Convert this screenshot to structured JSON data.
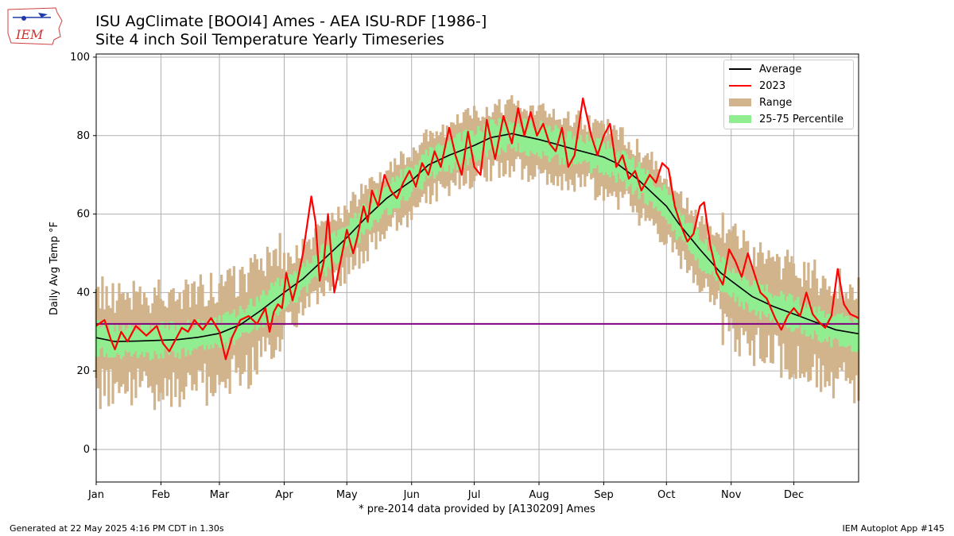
{
  "header": {
    "title_line1": "ISU AgClimate [BOOI4] Ames - AEA ISU-RDF [1986-]",
    "title_line2": "Site 4 inch Soil Temperature Yearly Timeseries",
    "logo_text": "IEM"
  },
  "footer": {
    "generated": "Generated at 22 May 2025 4:16 PM CDT in 1.30s",
    "app": "IEM Autoplot App #145",
    "note": "* pre-2014 data provided by [A130209] Ames"
  },
  "colors": {
    "average": "#000000",
    "year": "#ff0000",
    "range": "#d2b48c",
    "percentile": "#90ee90",
    "freezing_line": "#800080",
    "grid": "#b0b0b0"
  },
  "chart_data": {
    "type": "area",
    "xlabel": "",
    "ylabel": "Daily Avg Temp °F",
    "ylim": [
      -8.3,
      100.8
    ],
    "yticks": [
      0,
      20,
      40,
      60,
      80,
      100
    ],
    "xlim_days": [
      1,
      366
    ],
    "months": [
      "Jan",
      "Feb",
      "Mar",
      "Apr",
      "May",
      "Jun",
      "Jul",
      "Aug",
      "Sep",
      "Oct",
      "Nov",
      "Dec"
    ],
    "month_start_days": [
      1,
      32,
      60,
      91,
      121,
      152,
      182,
      213,
      244,
      274,
      305,
      335
    ],
    "grid": true,
    "legend_placement": "top-right",
    "reference_line": {
      "y": 32,
      "color": "#800080"
    },
    "legend": [
      "Average",
      "2023",
      "Range",
      "25-75 Percentile"
    ],
    "average_anchors": [
      [
        1,
        28.5
      ],
      [
        10,
        27.5
      ],
      [
        20,
        27.6
      ],
      [
        30,
        27.8
      ],
      [
        40,
        28.0
      ],
      [
        50,
        28.6
      ],
      [
        60,
        29.6
      ],
      [
        70,
        31.8
      ],
      [
        80,
        35.5
      ],
      [
        91,
        40.0
      ],
      [
        100,
        43.5
      ],
      [
        110,
        48.5
      ],
      [
        121,
        54.0
      ],
      [
        130,
        59.0
      ],
      [
        140,
        64.0
      ],
      [
        152,
        68.5
      ],
      [
        160,
        72.5
      ],
      [
        170,
        75.0
      ],
      [
        182,
        77.5
      ],
      [
        190,
        79.5
      ],
      [
        200,
        80.5
      ],
      [
        213,
        79.0
      ],
      [
        220,
        78.0
      ],
      [
        230,
        76.5
      ],
      [
        244,
        74.5
      ],
      [
        250,
        73.0
      ],
      [
        260,
        69.0
      ],
      [
        274,
        62.0
      ],
      [
        280,
        57.5
      ],
      [
        290,
        51.0
      ],
      [
        300,
        45.0
      ],
      [
        305,
        43.0
      ],
      [
        315,
        39.0
      ],
      [
        325,
        36.5
      ],
      [
        335,
        34.5
      ],
      [
        345,
        32.5
      ],
      [
        355,
        30.5
      ],
      [
        366,
        29.5
      ]
    ],
    "year_label": "2023",
    "year_anchors": [
      [
        1,
        31.5
      ],
      [
        5,
        33.0
      ],
      [
        8,
        28.0
      ],
      [
        10,
        25.5
      ],
      [
        13,
        30.0
      ],
      [
        16,
        27.5
      ],
      [
        20,
        31.5
      ],
      [
        25,
        29.0
      ],
      [
        30,
        31.5
      ],
      [
        33,
        27.0
      ],
      [
        36,
        25.0
      ],
      [
        38,
        27.0
      ],
      [
        42,
        31.0
      ],
      [
        45,
        30.0
      ],
      [
        48,
        33.0
      ],
      [
        52,
        30.5
      ],
      [
        56,
        33.5
      ],
      [
        60,
        30.0
      ],
      [
        63,
        23.0
      ],
      [
        66,
        28.5
      ],
      [
        70,
        33.0
      ],
      [
        74,
        34.0
      ],
      [
        78,
        32.0
      ],
      [
        82,
        36.0
      ],
      [
        84,
        30.0
      ],
      [
        86,
        35.0
      ],
      [
        88,
        37.0
      ],
      [
        90,
        36.0
      ],
      [
        92,
        45.0
      ],
      [
        95,
        38.0
      ],
      [
        97,
        42.0
      ],
      [
        100,
        50.0
      ],
      [
        104,
        64.5
      ],
      [
        106,
        58.0
      ],
      [
        108,
        43.0
      ],
      [
        110,
        48.0
      ],
      [
        112,
        60.0
      ],
      [
        115,
        40.0
      ],
      [
        118,
        48.0
      ],
      [
        121,
        56.0
      ],
      [
        124,
        50.0
      ],
      [
        126,
        54.0
      ],
      [
        129,
        62.0
      ],
      [
        131,
        58.0
      ],
      [
        133,
        66.0
      ],
      [
        136,
        62.0
      ],
      [
        139,
        70.0
      ],
      [
        142,
        66.0
      ],
      [
        145,
        64.0
      ],
      [
        148,
        68.0
      ],
      [
        151,
        71.0
      ],
      [
        154,
        67.0
      ],
      [
        157,
        73.0
      ],
      [
        160,
        70.0
      ],
      [
        163,
        76.0
      ],
      [
        166,
        72.0
      ],
      [
        170,
        82.0
      ],
      [
        173,
        75.0
      ],
      [
        176,
        70.0
      ],
      [
        179,
        81.0
      ],
      [
        182,
        72.0
      ],
      [
        185,
        70.0
      ],
      [
        188,
        84.0
      ],
      [
        192,
        74.0
      ],
      [
        196,
        85.0
      ],
      [
        200,
        78.0
      ],
      [
        203,
        87.0
      ],
      [
        206,
        80.0
      ],
      [
        209,
        86.0
      ],
      [
        212,
        80.0
      ],
      [
        215,
        83.0
      ],
      [
        218,
        78.0
      ],
      [
        221,
        76.0
      ],
      [
        224,
        82.0
      ],
      [
        227,
        72.0
      ],
      [
        230,
        75.0
      ],
      [
        234,
        89.5
      ],
      [
        238,
        80.0
      ],
      [
        241,
        75.0
      ],
      [
        244,
        80.0
      ],
      [
        247,
        83.0
      ],
      [
        250,
        72.0
      ],
      [
        253,
        75.0
      ],
      [
        256,
        69.0
      ],
      [
        259,
        71.0
      ],
      [
        262,
        66.0
      ],
      [
        266,
        70.0
      ],
      [
        269,
        68.0
      ],
      [
        272,
        73.0
      ],
      [
        275,
        71.5
      ],
      [
        278,
        62.0
      ],
      [
        281,
        57.0
      ],
      [
        284,
        53.0
      ],
      [
        287,
        55.0
      ],
      [
        290,
        62.0
      ],
      [
        292,
        63.0
      ],
      [
        295,
        52.0
      ],
      [
        298,
        45.0
      ],
      [
        301,
        42.0
      ],
      [
        304,
        51.0
      ],
      [
        307,
        48.0
      ],
      [
        310,
        44.0
      ],
      [
        313,
        50.0
      ],
      [
        316,
        45.0
      ],
      [
        319,
        40.0
      ],
      [
        322,
        38.5
      ],
      [
        326,
        33.5
      ],
      [
        329,
        30.5
      ],
      [
        332,
        34.0
      ],
      [
        335,
        36.0
      ],
      [
        338,
        34.0
      ],
      [
        341,
        40.0
      ],
      [
        344,
        34.5
      ],
      [
        347,
        32.5
      ],
      [
        350,
        31.0
      ],
      [
        353,
        34.0
      ],
      [
        356,
        46.0
      ],
      [
        359,
        37.0
      ],
      [
        362,
        34.5
      ],
      [
        366,
        33.5
      ]
    ]
  }
}
